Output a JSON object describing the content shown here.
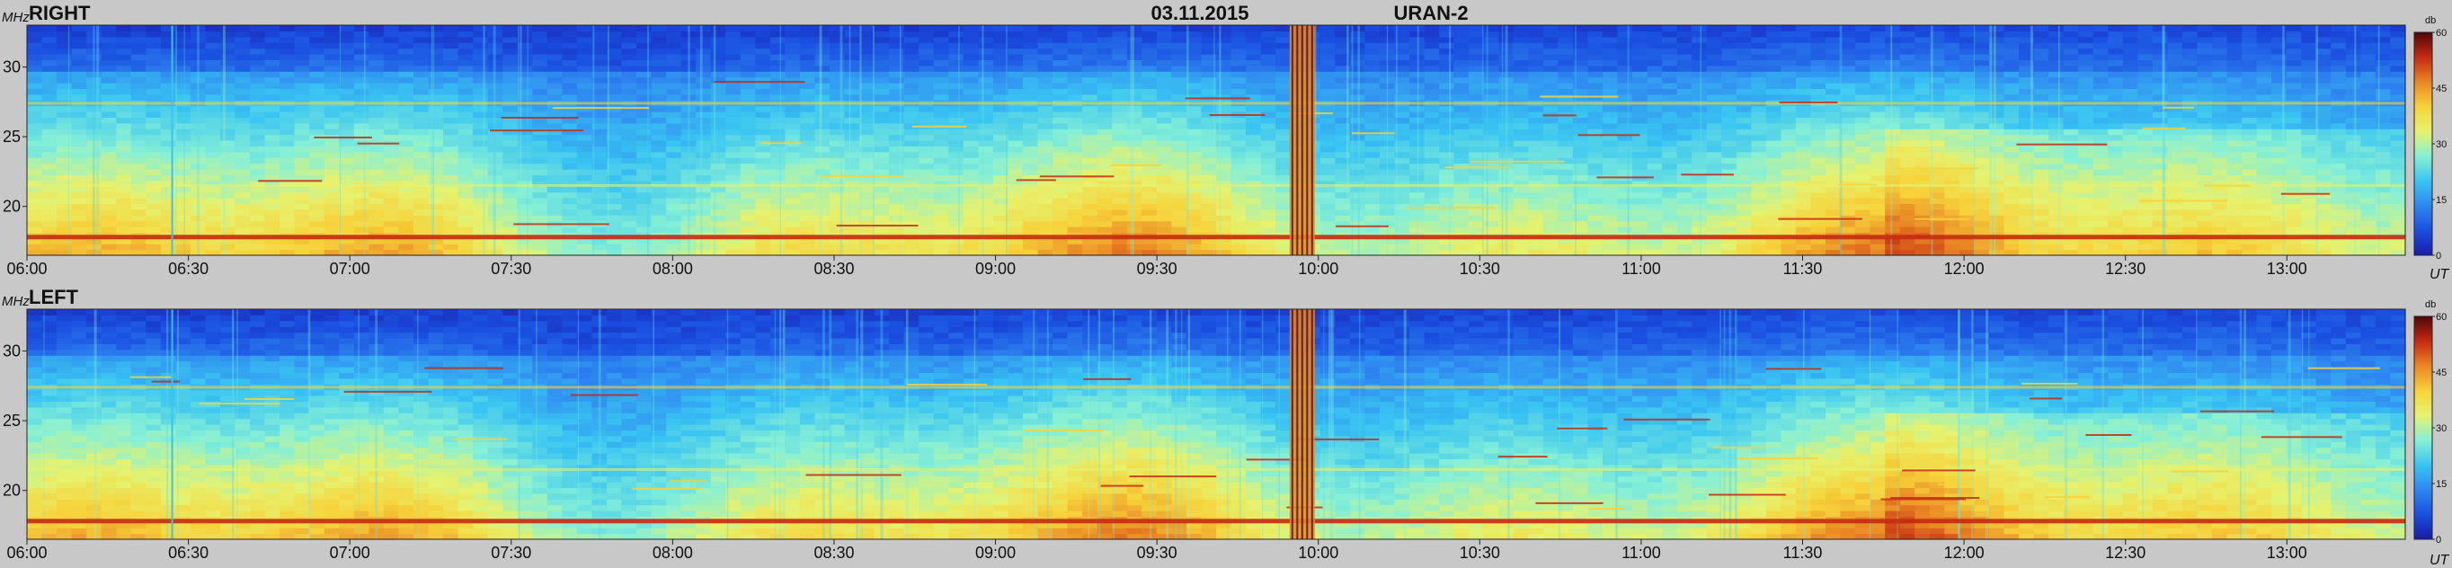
{
  "header": {
    "date": "03.11.2015",
    "instrument": "URAN-2"
  },
  "colors": {
    "background": "#c8c8c8",
    "colormap": [
      "#1a1aa8",
      "#1a4fe0",
      "#2f86f0",
      "#39c4f2",
      "#86f0d6",
      "#e6f26e",
      "#f7d23a",
      "#e98624",
      "#c42a12",
      "#4e0707"
    ]
  },
  "chart_data": [
    {
      "type": "heatmap",
      "title": "RIGHT",
      "ylabel": "MHz",
      "xlabel": "UT",
      "x_ticks": [
        "06:00",
        "06:30",
        "07:00",
        "07:30",
        "08:00",
        "08:30",
        "09:00",
        "09:30",
        "10:00",
        "10:30",
        "11:00",
        "11:30",
        "12:00",
        "12:30",
        "13:00"
      ],
      "y_ticks": [
        30,
        25,
        20
      ],
      "xlim": [
        "06:00",
        "13:22"
      ],
      "ylim": [
        16.5,
        33
      ],
      "colorbar": {
        "label": "db",
        "ticks": [
          60,
          45,
          30,
          15,
          0
        ],
        "range": [
          0,
          60
        ]
      },
      "features": {
        "persistent_interference_mhz": [
          17.8,
          27.4,
          21.5
        ],
        "broadband_burst_time": "09:57",
        "calibration_line_time": "06:27"
      }
    },
    {
      "type": "heatmap",
      "title": "LEFT",
      "ylabel": "MHz",
      "xlabel": "UT",
      "x_ticks": [
        "06:00",
        "06:30",
        "07:00",
        "07:30",
        "08:00",
        "08:30",
        "09:00",
        "09:30",
        "10:00",
        "10:30",
        "11:00",
        "11:30",
        "12:00",
        "12:30",
        "13:00"
      ],
      "y_ticks": [
        30,
        25,
        20
      ],
      "xlim": [
        "06:00",
        "13:22"
      ],
      "ylim": [
        16.5,
        33
      ],
      "colorbar": {
        "label": "db",
        "ticks": [
          60,
          45,
          30,
          15,
          0
        ],
        "range": [
          0,
          60
        ]
      },
      "features": {
        "persistent_interference_mhz": [
          17.8,
          27.4,
          21.5
        ],
        "broadband_burst_time": "09:57",
        "calibration_line_time": "06:27"
      }
    }
  ]
}
